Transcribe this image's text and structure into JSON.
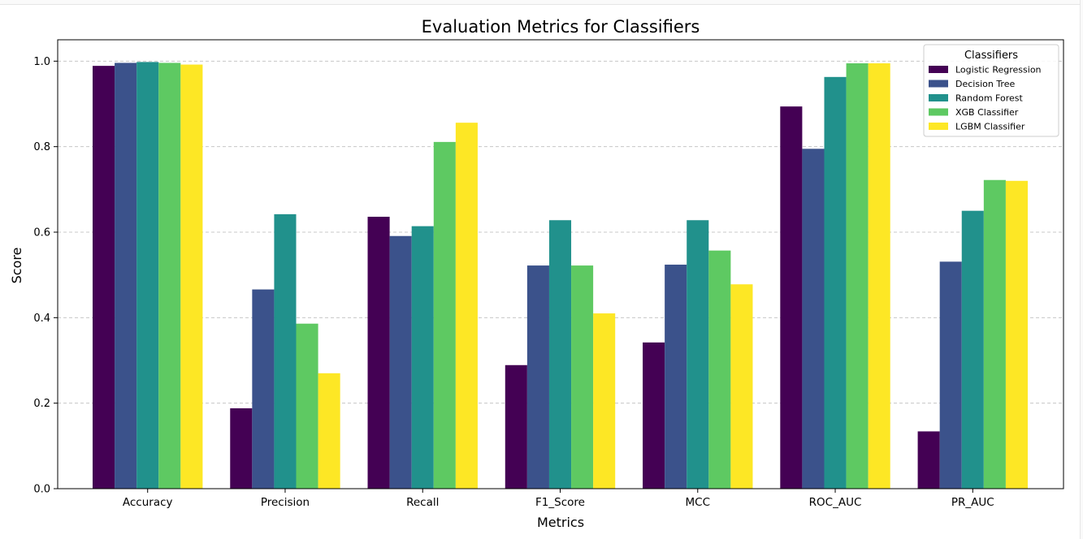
{
  "chart_data": {
    "type": "bar",
    "title": "Evaluation Metrics for Classifiers",
    "xlabel": "Metrics",
    "ylabel": "Score",
    "ylim": [
      0,
      1.05
    ],
    "yticks": [
      "0.0",
      "0.2",
      "0.4",
      "0.6",
      "0.8",
      "1.0"
    ],
    "grid": "y-dashed",
    "legend_title": "Classifiers",
    "legend_position": "top-right",
    "categories": [
      "Accuracy",
      "Precision",
      "Recall",
      "F1_Score",
      "MCC",
      "ROC_AUC",
      "PR_AUC"
    ],
    "series": [
      {
        "name": "Logistic Regression",
        "color": "#440154",
        "values": [
          0.989,
          0.188,
          0.636,
          0.289,
          0.342,
          0.894,
          0.134
        ]
      },
      {
        "name": "Decision Tree",
        "color": "#3b528b",
        "values": [
          0.996,
          0.466,
          0.591,
          0.522,
          0.524,
          0.795,
          0.531
        ]
      },
      {
        "name": "Random Forest",
        "color": "#21918c",
        "values": [
          0.998,
          0.642,
          0.614,
          0.628,
          0.628,
          0.963,
          0.65
        ]
      },
      {
        "name": "XGB Classifier",
        "color": "#5ec962",
        "values": [
          0.996,
          0.386,
          0.811,
          0.522,
          0.557,
          0.995,
          0.722
        ]
      },
      {
        "name": "LGBM Classifier",
        "color": "#fde725",
        "values": [
          0.992,
          0.27,
          0.856,
          0.41,
          0.478,
          0.995,
          0.72
        ]
      }
    ]
  }
}
